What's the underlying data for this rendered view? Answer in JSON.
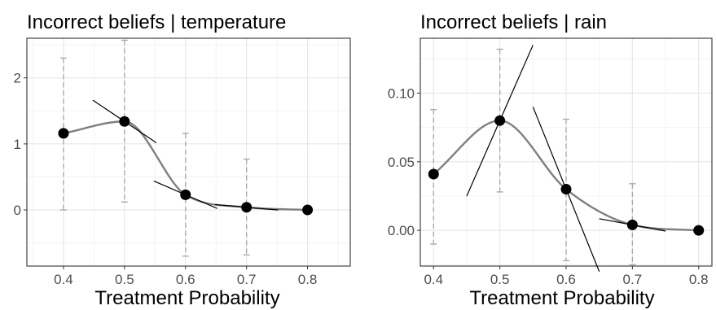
{
  "chart_data": [
    {
      "type": "line",
      "title": "Incorrect beliefs | temperature",
      "xlabel": "Treatment Probability",
      "ylabel": "",
      "xlim": [
        0.34,
        0.87
      ],
      "ylim": [
        -0.85,
        2.6
      ],
      "x_ticks": [
        0.4,
        0.5,
        0.6,
        0.7,
        0.8
      ],
      "x_tick_labels": [
        "0.4",
        "0.5",
        "0.6",
        "0.7",
        "0.8"
      ],
      "y_ticks": [
        0,
        1,
        2
      ],
      "y_tick_labels": [
        "0",
        "1",
        "2"
      ],
      "grid": true,
      "points": [
        {
          "x": 0.4,
          "y": 1.16,
          "lower": 0.0,
          "upper": 2.3,
          "slope": null
        },
        {
          "x": 0.5,
          "y": 1.34,
          "lower": 0.12,
          "upper": 2.57,
          "slope": -6.2
        },
        {
          "x": 0.6,
          "y": 0.23,
          "lower": -0.7,
          "upper": 1.16,
          "slope": -4.0
        },
        {
          "x": 0.7,
          "y": 0.04,
          "lower": -0.68,
          "upper": 0.77,
          "slope": -0.8
        },
        {
          "x": 0.8,
          "y": 0.0,
          "lower": null,
          "upper": null,
          "slope": null
        }
      ],
      "colors": {
        "curve": "#7f7f7f",
        "point": "#000000",
        "errorbar": "#a6a6a6",
        "tangent": "#000000"
      }
    },
    {
      "type": "line",
      "title": "Incorrect beliefs | rain",
      "xlabel": "Treatment Probability",
      "ylabel": "",
      "xlim": [
        0.38,
        0.82
      ],
      "ylim": [
        -0.026,
        0.14
      ],
      "x_ticks": [
        0.4,
        0.5,
        0.6,
        0.7,
        0.8
      ],
      "x_tick_labels": [
        "0.4",
        "0.5",
        "0.6",
        "0.7",
        "0.8"
      ],
      "y_ticks": [
        0.0,
        0.05,
        0.1
      ],
      "y_tick_labels": [
        "0.00",
        "0.05",
        "0.10"
      ],
      "grid": true,
      "points": [
        {
          "x": 0.4,
          "y": 0.041,
          "lower": -0.01,
          "upper": 0.088,
          "slope": null
        },
        {
          "x": 0.5,
          "y": 0.08,
          "lower": 0.028,
          "upper": 0.132,
          "slope": 1.1
        },
        {
          "x": 0.6,
          "y": 0.03,
          "lower": -0.022,
          "upper": 0.081,
          "slope": -1.2
        },
        {
          "x": 0.7,
          "y": 0.004,
          "lower": -0.025,
          "upper": 0.034,
          "slope": -0.09
        },
        {
          "x": 0.8,
          "y": 0.0,
          "lower": null,
          "upper": null,
          "slope": null
        }
      ],
      "colors": {
        "curve": "#7f7f7f",
        "point": "#000000",
        "errorbar": "#a6a6a6",
        "tangent": "#000000"
      }
    }
  ]
}
